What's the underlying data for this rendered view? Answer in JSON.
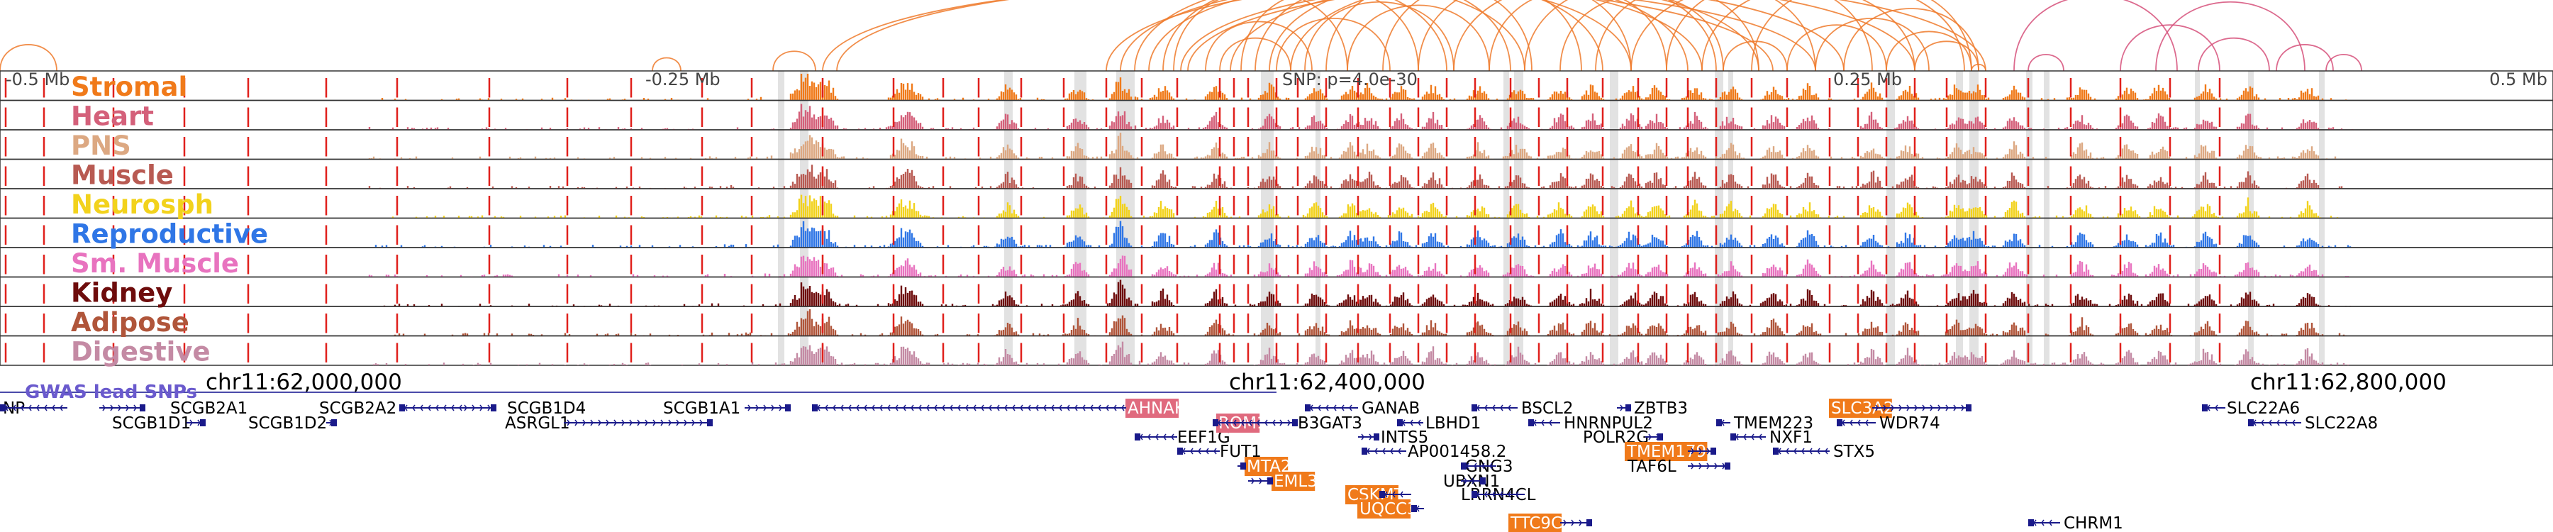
{
  "axis": {
    "ticks": [
      {
        "label": "-0.5 Mb",
        "anchor": "start"
      },
      {
        "label": "-0.25 Mb",
        "anchor": "start"
      },
      {
        "label": "0.25 Mb",
        "anchor": "start"
      },
      {
        "label": "0.5 Mb",
        "anchor": "end"
      }
    ],
    "snp_label": "SNP: p=4.0e-30"
  },
  "tracks": [
    {
      "name": "Stromal",
      "color": "#f07a1a"
    },
    {
      "name": "Heart",
      "color": "#d4607a"
    },
    {
      "name": "PNS",
      "color": "#dca882"
    },
    {
      "name": "Muscle",
      "color": "#b85a52"
    },
    {
      "name": "Neurosph",
      "color": "#f2d21c"
    },
    {
      "name": "Reproductive",
      "color": "#2f76e6"
    },
    {
      "name": "Sm. Muscle",
      "color": "#e873bf"
    },
    {
      "name": "Kidney",
      "color": "#6e0c0c"
    },
    {
      "name": "Adipose",
      "color": "#b0553a"
    },
    {
      "name": "Digestive",
      "color": "#c48aa4"
    }
  ],
  "coordinates": [
    "chr11:62,000,000",
    "chr11:62,400,000",
    "chr11:62,800,000"
  ],
  "gwas_label": "GWAS lead SNPs",
  "colors": {
    "arc": "#ee7a2c",
    "arc_pink": "#d6507a",
    "marker_red": "#e0201c",
    "gene_highlight": "#f07a1a",
    "gene_highlight_pink": "#e06a7e",
    "gene_strand": "#1a1a8a"
  },
  "genes": [
    {
      "name": "NP",
      "highlight": false
    },
    {
      "name": "SCGB2A1",
      "highlight": false
    },
    {
      "name": "SCGB1D1",
      "highlight": false
    },
    {
      "name": "SCGB1D2",
      "highlight": false
    },
    {
      "name": "SCGB2A2",
      "highlight": false
    },
    {
      "name": "SCGB1D4",
      "highlight": false
    },
    {
      "name": "ASRGL1",
      "highlight": false
    },
    {
      "name": "SCGB1A1",
      "highlight": false
    },
    {
      "name": "AHNAK",
      "highlight": "pink"
    },
    {
      "name": "EEF1G",
      "highlight": false
    },
    {
      "name": "FUT1",
      "highlight": false
    },
    {
      "name": "MTA2",
      "highlight": "orange"
    },
    {
      "name": "EML3",
      "highlight": "orange"
    },
    {
      "name": "ROM1",
      "highlight": "pink"
    },
    {
      "name": "B3GAT3",
      "highlight": false
    },
    {
      "name": "GANAB",
      "highlight": false
    },
    {
      "name": "INTS5",
      "highlight": false
    },
    {
      "name": "AP001458.2",
      "highlight": false
    },
    {
      "name": "CSKMT",
      "highlight": "orange"
    },
    {
      "name": "UQCC3",
      "highlight": "orange"
    },
    {
      "name": "LBHD1",
      "highlight": false
    },
    {
      "name": "GNG3",
      "highlight": false
    },
    {
      "name": "UBXN1",
      "highlight": false
    },
    {
      "name": "LRRN4CL",
      "highlight": false
    },
    {
      "name": "TTC9C",
      "highlight": "orange"
    },
    {
      "name": "BSCL2",
      "highlight": false
    },
    {
      "name": "HNRNPUL2",
      "highlight": false
    },
    {
      "name": "ZBTB3",
      "highlight": false
    },
    {
      "name": "POLR2G",
      "highlight": false
    },
    {
      "name": "TMEM179B",
      "highlight": "orange"
    },
    {
      "name": "TAF6L",
      "highlight": false
    },
    {
      "name": "TMEM223",
      "highlight": false
    },
    {
      "name": "NXF1",
      "highlight": false
    },
    {
      "name": "SLC3A2",
      "highlight": "orange"
    },
    {
      "name": "WDR74",
      "highlight": false
    },
    {
      "name": "STX5",
      "highlight": false
    },
    {
      "name": "SLC22A6",
      "highlight": false
    },
    {
      "name": "SLC22A8",
      "highlight": false
    },
    {
      "name": "CHRM1",
      "highlight": false
    }
  ]
}
